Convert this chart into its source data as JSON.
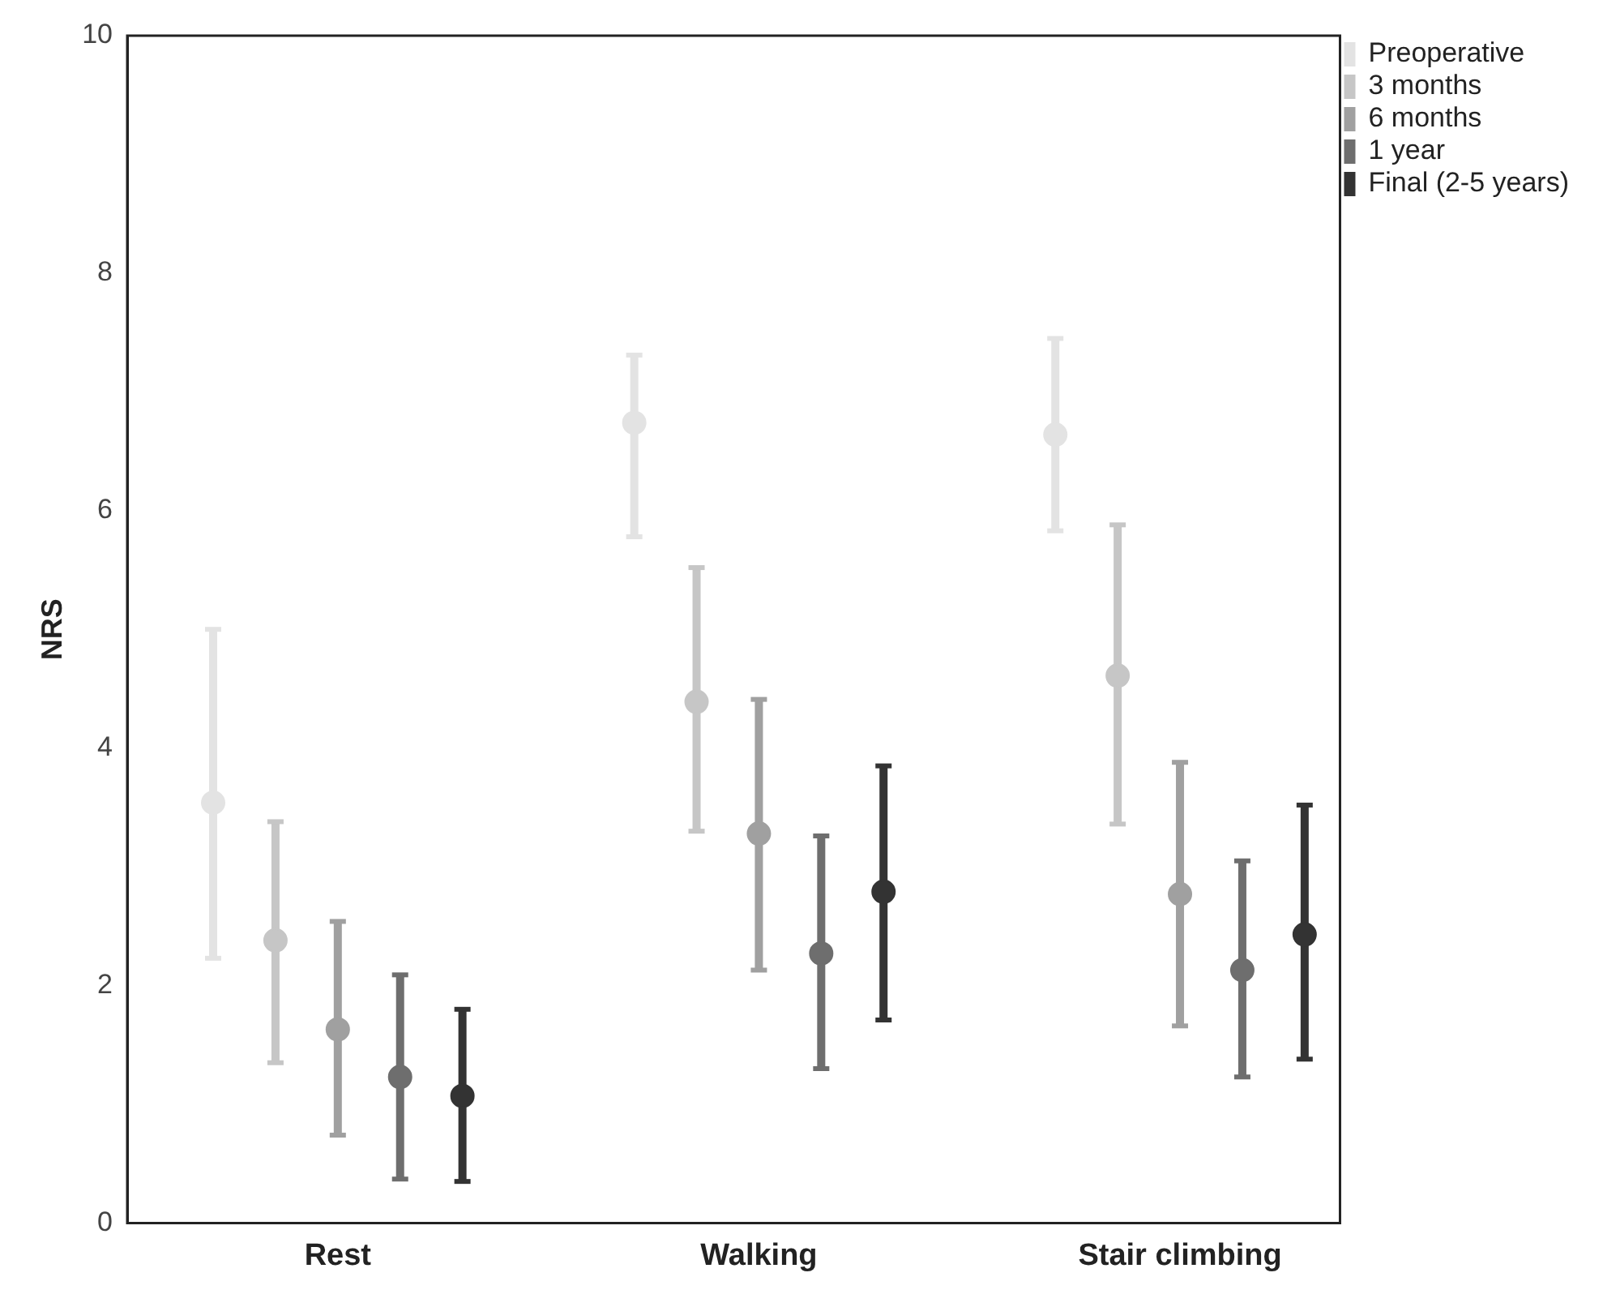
{
  "chart_data": {
    "type": "scatter",
    "ylabel": "NRS",
    "categories": [
      "Rest",
      "Walking",
      "Stair climbing"
    ],
    "series": [
      {
        "name": "Preoperative",
        "color": "#e3e3e3",
        "values": [
          3.54,
          6.74,
          6.64
        ],
        "errors": [
          [
            2.23,
            5.0
          ],
          [
            5.78,
            7.31
          ],
          [
            5.83,
            7.45
          ]
        ]
      },
      {
        "name": "3 months",
        "color": "#c6c6c6",
        "values": [
          2.38,
          4.39,
          4.61
        ],
        "errors": [
          [
            1.35,
            3.38
          ],
          [
            3.3,
            5.52
          ],
          [
            3.36,
            5.88
          ]
        ]
      },
      {
        "name": "6 months",
        "color": "#a0a0a0",
        "values": [
          1.63,
          3.28,
          2.77
        ],
        "errors": [
          [
            0.74,
            2.54
          ],
          [
            2.13,
            4.41
          ],
          [
            1.66,
            3.88
          ]
        ]
      },
      {
        "name": "1 year",
        "color": "#6e6e6e",
        "values": [
          1.23,
          2.27,
          2.13
        ],
        "errors": [
          [
            0.37,
            2.09
          ],
          [
            1.3,
            3.26
          ],
          [
            1.23,
            3.05
          ]
        ]
      },
      {
        "name": "Final (2-5 years)",
        "color": "#333333",
        "values": [
          1.07,
          2.79,
          2.43
        ],
        "errors": [
          [
            0.35,
            1.8
          ],
          [
            1.71,
            3.85
          ],
          [
            1.38,
            3.52
          ]
        ]
      }
    ],
    "ylim": [
      0,
      10
    ],
    "yticks": [
      0,
      2,
      4,
      6,
      8,
      10
    ],
    "grid": false,
    "legend": "top right",
    "marker": "circle"
  }
}
